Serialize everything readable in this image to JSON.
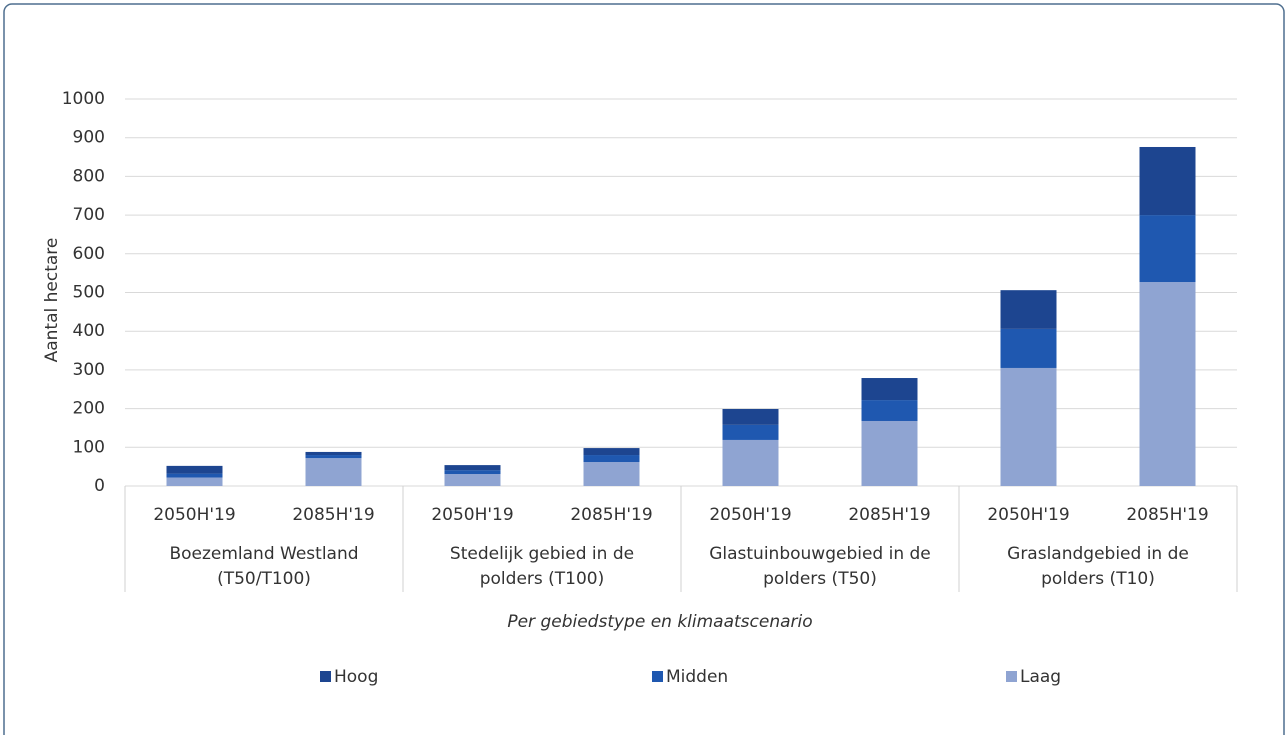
{
  "chart_data": {
    "type": "bar",
    "stacked": true,
    "y_label": "Aantal hectare",
    "x_label": "Per gebiedstype en klimaatscenario",
    "categories": [
      "2050H'19",
      "2085H'19",
      "2050H'19",
      "2085H'19",
      "2050H'19",
      "2085H'19",
      "2050H'19",
      "2085H'19"
    ],
    "groups": [
      [
        "Boezemland Westland",
        "(T50/T100)"
      ],
      [
        "Stedelijk gebied in de",
        "polders (T100)"
      ],
      [
        "Glastuinbouwgebied in de",
        "polders (T50)"
      ],
      [
        "Graslandgebied in de",
        "polders (T10)"
      ]
    ],
    "series": [
      {
        "name": "Hoog",
        "color": "#1d4590",
        "values": [
          20,
          8,
          13,
          18,
          41,
          57,
          100,
          176
        ]
      },
      {
        "name": "Midden",
        "color": "#1f58b0",
        "values": [
          10,
          8,
          10,
          18,
          39,
          54,
          101,
          173
        ]
      },
      {
        "name": "Laag",
        "color": "#8fa4d2",
        "values": [
          22,
          72,
          31,
          62,
          119,
          168,
          305,
          527
        ]
      }
    ],
    "ylim": [
      0,
      1000
    ],
    "yticks": [
      0,
      100,
      200,
      300,
      400,
      500,
      600,
      700,
      800,
      900,
      1000
    ],
    "grid": true,
    "legend": "bottom"
  }
}
